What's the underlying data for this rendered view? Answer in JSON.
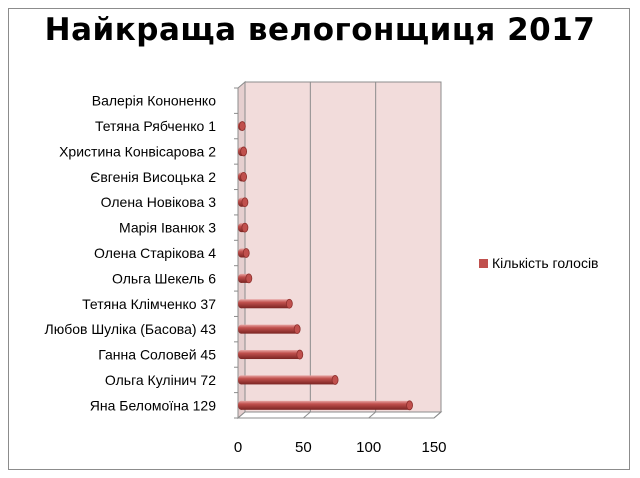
{
  "chart_data": {
    "type": "bar",
    "orientation": "horizontal",
    "title": "Найкраща велогонщиця 2017",
    "categories": [
      "Яна Беломоїна 129",
      "Ольга Кулінич 72",
      "Ганна Соловей 45",
      "Любов Шуліка (Басова) 43",
      "Тетяна Клімченко 37",
      "Ольга Шекель 6",
      "Олена Старікова 4",
      "Марія Іванюк 3",
      "Олена Новікова 3",
      "Євгенія Висоцька 2",
      "Христина Конвісарова 2",
      "Тетяна Рябченко 1",
      "Валерія Кононенко"
    ],
    "series": [
      {
        "name": "Кількість голосів",
        "values": [
          129,
          72,
          45,
          43,
          37,
          6,
          4,
          3,
          3,
          2,
          2,
          1,
          0
        ],
        "color": "#c0504d"
      }
    ],
    "xlim": [
      0,
      150
    ],
    "xticks": [
      "0",
      "50",
      "100",
      "150"
    ],
    "grid": true,
    "legend": "right",
    "style": "3d-cylinder"
  },
  "colors": {
    "plot_back": "#f2dcdb",
    "plot_side": "#e6cfcf",
    "bar": "#c0504d",
    "bar_dark": "#8c2e2b",
    "bar_light": "#e5a19f",
    "grid": "#8c8c8c"
  }
}
